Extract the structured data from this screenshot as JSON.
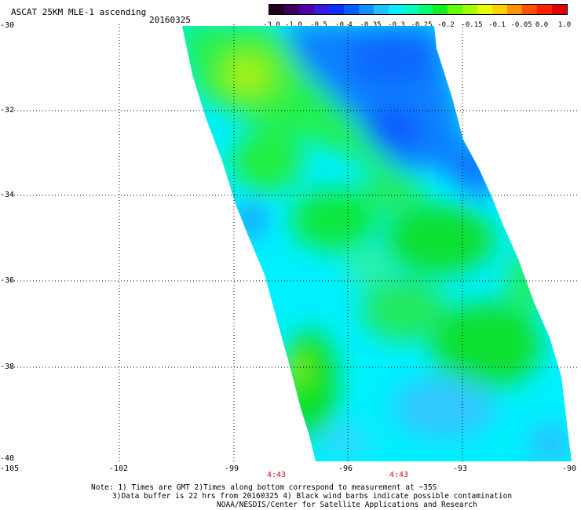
{
  "title": "ASCAT 25KM MLE-1 ascending",
  "date": "20160325",
  "colorbar": {
    "labels": [
      "-3.0",
      "-1.0",
      "-0.5",
      "-0.4",
      "-0.35",
      "-0.3",
      "-0.25",
      "-0.2",
      "-0.15",
      "-0.1",
      "-0.05",
      "0.0",
      "1.0"
    ],
    "colors": [
      "#200020",
      "#3a0060",
      "#5000a8",
      "#3818e0",
      "#0a30ff",
      "#0060ff",
      "#1090ff",
      "#20c0ff",
      "#00f0ff",
      "#00ffc0",
      "#00ff70",
      "#10f020",
      "#60ff00",
      "#a0ff00",
      "#e8ff00",
      "#ffd000",
      "#ff9000",
      "#ff5000",
      "#ff2000",
      "#e00000"
    ]
  },
  "axes": {
    "lat_labels": [
      "-30",
      "-32",
      "-34",
      "-36",
      "-38",
      "-40"
    ],
    "lon_labels": [
      "-105",
      "-102",
      "-99",
      "-96",
      "-93",
      "-90"
    ]
  },
  "times": [
    "4:43",
    "4:43"
  ],
  "notes": [
    "Note: 1) Times are GMT 2)Times along bottom correspond to measurement at ~35S",
    "3)Data buffer is 22 hrs from 20160325 4) Black wind barbs indicate possible contamination",
    "NOAA/NESDIS/Center for Satellite Applications and Research"
  ]
}
